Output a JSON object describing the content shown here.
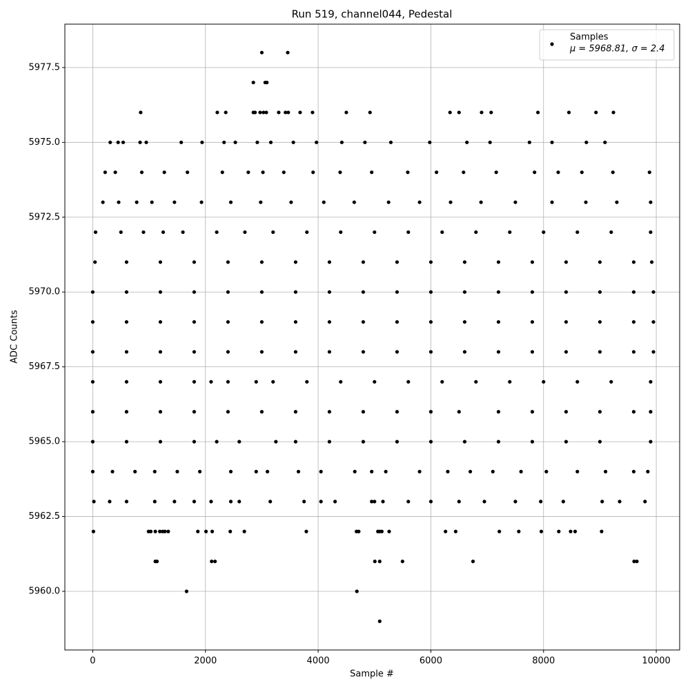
{
  "chart_data": {
    "type": "scatter",
    "title": "Run 519, channel044, Pedestal",
    "x_label": "Sample #",
    "y_label": "ADC Counts",
    "xlim": [
      -495,
      10415
    ],
    "ylim": [
      5958.04,
      5978.95
    ],
    "xticks": [
      0,
      2000,
      4000,
      6000,
      8000,
      10000
    ],
    "yticks": [
      {
        "value": 5960,
        "label": "5960.0"
      },
      5962.5,
      {
        "value": 5965,
        "label": "5965.0"
      },
      5967.5,
      {
        "value": 5970,
        "label": "5970.0"
      },
      5972.5,
      {
        "value": 5975,
        "label": "5975.0"
      },
      5977.5
    ],
    "grid": true,
    "legend": "upper right",
    "legend_note": "μ = 5968.81, σ = 2.4",
    "series": [
      {
        "name": "Samples",
        "color": "#000000",
        "x": [
          3000,
          3460,
          2850,
          3060,
          3090,
          850,
          2210,
          2360,
          2850,
          2880,
          2970,
          3030,
          3080,
          3300,
          3420,
          3470,
          3680,
          3900,
          4500,
          4920,
          6340,
          6500,
          6900,
          7070,
          7900,
          8450,
          8930,
          9240,
          310,
          450,
          540,
          840,
          950,
          1570,
          1940,
          2330,
          2530,
          2920,
          3160,
          3560,
          3970,
          4420,
          4830,
          5290,
          5980,
          6640,
          7050,
          7750,
          8150,
          8760,
          9090,
          220,
          400,
          870,
          1270,
          1680,
          2300,
          2760,
          3020,
          3390,
          3910,
          4390,
          4950,
          5590,
          6100,
          6580,
          7160,
          7840,
          8260,
          8680,
          9230,
          9880,
          180,
          460,
          780,
          1050,
          1450,
          1930,
          2450,
          2980,
          3520,
          4100,
          4640,
          5250,
          5800,
          6350,
          6890,
          7500,
          8150,
          8750,
          9300,
          9900,
          50,
          500,
          900,
          1250,
          1600,
          2200,
          2700,
          3200,
          3800,
          4400,
          5000,
          5600,
          6200,
          6800,
          7400,
          8000,
          8600,
          9200,
          9900,
          40,
          600,
          1200,
          1800,
          2400,
          3000,
          3600,
          4200,
          4800,
          5400,
          6000,
          6600,
          7200,
          7800,
          8400,
          9000,
          9600,
          9920,
          0,
          600,
          1200,
          1800,
          2400,
          3000,
          3600,
          4200,
          4800,
          5400,
          6000,
          6600,
          7200,
          7800,
          8400,
          9000,
          9600,
          9950,
          0,
          600,
          1200,
          1800,
          2400,
          3000,
          3600,
          4200,
          4800,
          5400,
          6000,
          6600,
          7200,
          7800,
          8400,
          9000,
          9600,
          9950,
          0,
          600,
          1200,
          1800,
          2400,
          3000,
          3600,
          4200,
          4800,
          5400,
          6000,
          6600,
          7200,
          7800,
          8400,
          9000,
          9600,
          9950,
          0,
          600,
          1200,
          1800,
          2100,
          2400,
          2900,
          3200,
          3800,
          4400,
          5000,
          5600,
          6200,
          6800,
          7400,
          8000,
          8600,
          9200,
          9900,
          0,
          600,
          1200,
          1800,
          2400,
          3000,
          3600,
          4200,
          4800,
          5400,
          6000,
          6500,
          7200,
          7800,
          8400,
          9000,
          9600,
          9900,
          0,
          600,
          1200,
          1800,
          2200,
          2600,
          3250,
          3600,
          4200,
          4800,
          5400,
          6000,
          6600,
          7200,
          7800,
          8400,
          9000,
          9900,
          0,
          350,
          750,
          1100,
          1500,
          1900,
          2450,
          2900,
          3100,
          3650,
          4050,
          4650,
          4950,
          5200,
          5800,
          6300,
          6700,
          7100,
          7600,
          8050,
          8600,
          9100,
          9600,
          9850,
          20,
          300,
          600,
          1100,
          1450,
          1800,
          2100,
          2450,
          2600,
          3150,
          3750,
          4050,
          4300,
          4950,
          5000,
          5150,
          5600,
          6000,
          6500,
          6950,
          7500,
          7950,
          8350,
          9040,
          9350,
          9800,
          12,
          990,
          1030,
          1110,
          1190,
          1240,
          1280,
          1340,
          1865,
          2010,
          2120,
          2440,
          2690,
          3790,
          4680,
          4720,
          5060,
          5090,
          5130,
          5260,
          6260,
          6440,
          7215,
          7560,
          7960,
          8270,
          8480,
          8560,
          9030,
          1110,
          1140,
          2110,
          2170,
          5006,
          5092,
          5497,
          6748,
          9607,
          9656,
          1665,
          4687,
          5092
        ],
        "values": [
          5978,
          5978,
          5977,
          5977,
          5977,
          5976,
          5976,
          5976,
          5976,
          5976,
          5976,
          5976,
          5976,
          5976,
          5976,
          5976,
          5976,
          5976,
          5976,
          5976,
          5976,
          5976,
          5976,
          5976,
          5976,
          5976,
          5976,
          5976,
          5975,
          5975,
          5975,
          5975,
          5975,
          5975,
          5975,
          5975,
          5975,
          5975,
          5975,
          5975,
          5975,
          5975,
          5975,
          5975,
          5975,
          5975,
          5975,
          5975,
          5975,
          5975,
          5975,
          5974,
          5974,
          5974,
          5974,
          5974,
          5974,
          5974,
          5974,
          5974,
          5974,
          5974,
          5974,
          5974,
          5974,
          5974,
          5974,
          5974,
          5974,
          5974,
          5974,
          5974,
          5973,
          5973,
          5973,
          5973,
          5973,
          5973,
          5973,
          5973,
          5973,
          5973,
          5973,
          5973,
          5973,
          5973,
          5973,
          5973,
          5973,
          5973,
          5973,
          5973,
          5972,
          5972,
          5972,
          5972,
          5972,
          5972,
          5972,
          5972,
          5972,
          5972,
          5972,
          5972,
          5972,
          5972,
          5972,
          5972,
          5972,
          5972,
          5972,
          5971,
          5971,
          5971,
          5971,
          5971,
          5971,
          5971,
          5971,
          5971,
          5971,
          5971,
          5971,
          5971,
          5971,
          5971,
          5971,
          5971,
          5971,
          5970,
          5970,
          5970,
          5970,
          5970,
          5970,
          5970,
          5970,
          5970,
          5970,
          5970,
          5970,
          5970,
          5970,
          5970,
          5970,
          5970,
          5970,
          5969,
          5969,
          5969,
          5969,
          5969,
          5969,
          5969,
          5969,
          5969,
          5969,
          5969,
          5969,
          5969,
          5969,
          5969,
          5969,
          5969,
          5969,
          5968,
          5968,
          5968,
          5968,
          5968,
          5968,
          5968,
          5968,
          5968,
          5968,
          5968,
          5968,
          5968,
          5968,
          5968,
          5968,
          5968,
          5968,
          5967,
          5967,
          5967,
          5967,
          5967,
          5967,
          5967,
          5967,
          5967,
          5967,
          5967,
          5967,
          5967,
          5967,
          5967,
          5967,
          5967,
          5967,
          5967,
          5966,
          5966,
          5966,
          5966,
          5966,
          5966,
          5966,
          5966,
          5966,
          5966,
          5966,
          5966,
          5966,
          5966,
          5966,
          5966,
          5966,
          5966,
          5965,
          5965,
          5965,
          5965,
          5965,
          5965,
          5965,
          5965,
          5965,
          5965,
          5965,
          5965,
          5965,
          5965,
          5965,
          5965,
          5965,
          5965,
          5964,
          5964,
          5964,
          5964,
          5964,
          5964,
          5964,
          5964,
          5964,
          5964,
          5964,
          5964,
          5964,
          5964,
          5964,
          5964,
          5964,
          5964,
          5964,
          5964,
          5964,
          5964,
          5964,
          5964,
          5963,
          5963,
          5963,
          5963,
          5963,
          5963,
          5963,
          5963,
          5963,
          5963,
          5963,
          5963,
          5963,
          5963,
          5963,
          5963,
          5963,
          5963,
          5963,
          5963,
          5963,
          5963,
          5963,
          5963,
          5963,
          5963,
          5962,
          5962,
          5962,
          5962,
          5962,
          5962,
          5962,
          5962,
          5962,
          5962,
          5962,
          5962,
          5962,
          5962,
          5962,
          5962,
          5962,
          5962,
          5962,
          5962,
          5962,
          5962,
          5962,
          5962,
          5962,
          5962,
          5962,
          5962,
          5962,
          5961,
          5961,
          5961,
          5961,
          5961,
          5961,
          5961,
          5961,
          5961,
          5961,
          5960,
          5960,
          5959
        ]
      }
    ]
  }
}
